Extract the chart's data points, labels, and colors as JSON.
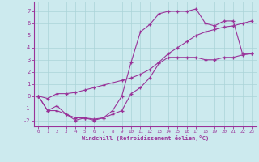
{
  "line1_x": [
    0,
    1,
    2,
    3,
    4,
    5,
    6,
    7,
    8,
    9,
    10,
    11,
    12,
    13,
    14,
    15,
    16,
    17,
    18,
    19,
    20,
    21,
    22,
    23
  ],
  "line1_y": [
    0.0,
    -1.2,
    -0.8,
    -1.5,
    -2.0,
    -1.8,
    -2.0,
    -1.8,
    -1.2,
    0.0,
    2.8,
    5.3,
    5.9,
    6.8,
    7.0,
    7.0,
    7.0,
    7.2,
    6.0,
    5.8,
    6.2,
    6.2,
    3.5,
    3.5
  ],
  "line2_x": [
    0,
    1,
    2,
    3,
    4,
    5,
    6,
    7,
    8,
    9,
    10,
    11,
    12,
    13,
    14,
    15,
    16,
    17,
    18,
    19,
    20,
    21,
    22,
    23
  ],
  "line2_y": [
    0.0,
    -1.2,
    -1.2,
    -1.5,
    -1.8,
    -1.8,
    -1.9,
    -1.8,
    -1.5,
    -1.2,
    0.2,
    0.7,
    1.5,
    2.7,
    3.2,
    3.2,
    3.2,
    3.2,
    3.0,
    3.0,
    3.2,
    3.2,
    3.4,
    3.5
  ],
  "line3_x": [
    0,
    1,
    2,
    3,
    4,
    5,
    6,
    7,
    8,
    9,
    10,
    11,
    12,
    13,
    14,
    15,
    16,
    17,
    18,
    19,
    20,
    21,
    22,
    23
  ],
  "line3_y": [
    0.0,
    -0.2,
    0.2,
    0.2,
    0.3,
    0.5,
    0.7,
    0.9,
    1.1,
    1.3,
    1.5,
    1.8,
    2.2,
    2.8,
    3.5,
    4.0,
    4.5,
    5.0,
    5.3,
    5.5,
    5.7,
    5.8,
    6.0,
    6.2
  ],
  "color": "#993399",
  "bg_color": "#cceaee",
  "grid_color": "#aad4d8",
  "xlim": [
    -0.5,
    23.5
  ],
  "ylim": [
    -2.5,
    7.8
  ],
  "xticks": [
    0,
    1,
    2,
    3,
    4,
    5,
    6,
    7,
    8,
    9,
    10,
    11,
    12,
    13,
    14,
    15,
    16,
    17,
    18,
    19,
    20,
    21,
    22,
    23
  ],
  "yticks": [
    -2,
    -1,
    0,
    1,
    2,
    3,
    4,
    5,
    6,
    7
  ],
  "xlabel": "Windchill (Refroidissement éolien,°C)",
  "marker": "+",
  "markersize": 3.5,
  "linewidth": 0.8
}
